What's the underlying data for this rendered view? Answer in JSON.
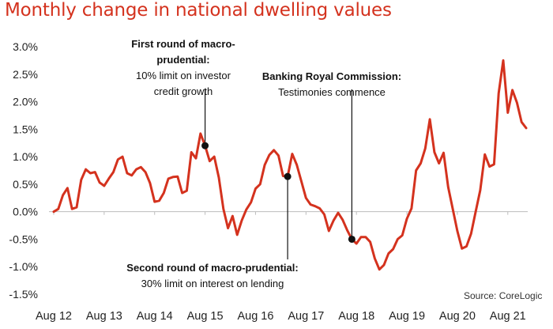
{
  "chart_data": {
    "type": "line",
    "title": "Monthly change in national dwelling values",
    "source": "Source:  CoreLogic",
    "ylim": [
      -1.5,
      3.0
    ],
    "yticks": [
      "3.0%",
      "2.5%",
      "2.0%",
      "1.5%",
      "1.0%",
      "0.5%",
      "0.0%",
      "-0.5%",
      "-1.0%",
      "-1.5%"
    ],
    "ytick_values": [
      3.0,
      2.5,
      2.0,
      1.5,
      1.0,
      0.5,
      0.0,
      -0.5,
      -1.0,
      -1.5
    ],
    "xticks": [
      "Aug 12",
      "Aug 13",
      "Aug 14",
      "Aug 15",
      "Aug 16",
      "Aug 17",
      "Aug 18",
      "Aug 19",
      "Aug 20",
      "Aug 21"
    ],
    "series_color": "#d4321e",
    "series": [
      {
        "x_start": "Aug 12",
        "values": [
          0.0,
          0.05,
          0.3,
          0.43,
          0.05,
          0.08,
          0.58,
          0.77,
          0.7,
          0.72,
          0.53,
          0.47,
          0.6,
          0.72,
          0.95,
          1.0,
          0.7,
          0.66,
          0.77,
          0.81,
          0.72,
          0.52,
          0.18,
          0.2,
          0.34,
          0.6,
          0.63,
          0.64,
          0.34,
          0.38,
          1.08,
          0.97,
          1.42,
          1.2,
          0.92,
          1.0,
          0.62,
          0.05,
          -0.3,
          -0.08,
          -0.42,
          -0.16,
          0.04,
          0.17,
          0.42,
          0.5,
          0.85,
          1.03,
          1.12,
          1.02,
          0.65,
          0.64,
          1.05,
          0.85,
          0.55,
          0.25,
          0.13,
          0.1,
          0.06,
          -0.05,
          -0.35,
          -0.16,
          -0.02,
          -0.15,
          -0.34,
          -0.5,
          -0.58,
          -0.46,
          -0.46,
          -0.55,
          -0.85,
          -1.05,
          -0.97,
          -0.76,
          -0.68,
          -0.5,
          -0.43,
          -0.13,
          0.06,
          0.75,
          0.88,
          1.15,
          1.68,
          1.08,
          0.88,
          1.07,
          0.45,
          0.05,
          -0.35,
          -0.67,
          -0.63,
          -0.4,
          0.0,
          0.39,
          1.04,
          0.82,
          0.86,
          2.15,
          2.75,
          1.8,
          2.21,
          1.98,
          1.63,
          1.52
        ]
      }
    ],
    "annotations": [
      {
        "index": 33,
        "bold": "First round of macro-",
        "bold2": "prudential:",
        "lines": [
          "10% limit on investor",
          "credit growth"
        ]
      },
      {
        "index": 51,
        "bold": "Second round of macro-prudential:",
        "lines": [
          "30% limit on interest on lending"
        ]
      },
      {
        "index": 65,
        "bold": "Banking Royal Commission:",
        "lines": [
          "Testimonies commence"
        ]
      }
    ]
  }
}
